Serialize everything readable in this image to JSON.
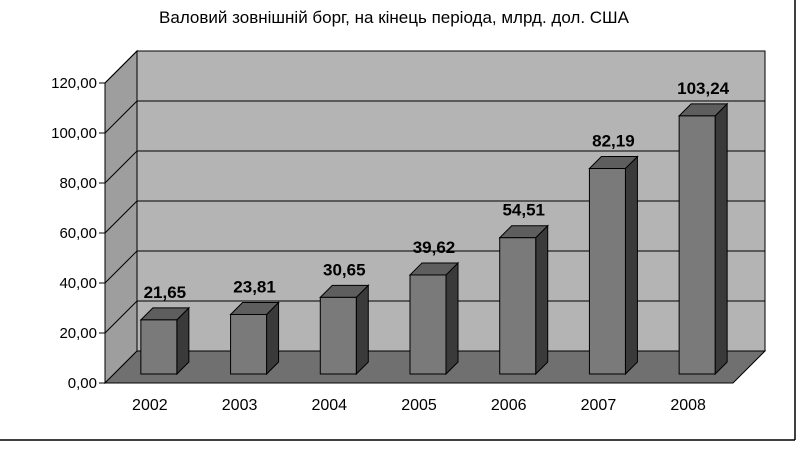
{
  "chart_data": {
    "type": "bar",
    "title": "Валовий зовнішній борг, на кінець періода, млрд. дол. США",
    "categories": [
      "2002",
      "2003",
      "2004",
      "2005",
      "2006",
      "2007",
      "2008"
    ],
    "values": [
      21.65,
      23.81,
      30.65,
      39.62,
      54.51,
      82.19,
      103.24
    ],
    "data_labels": [
      "21,65",
      "23,81",
      "30,65",
      "39,62",
      "54,51",
      "82,19",
      "103,24"
    ],
    "y_ticks": [
      "0,00",
      "20,00",
      "40,00",
      "60,00",
      "80,00",
      "100,00",
      "120,00"
    ],
    "ylim": [
      0,
      120
    ],
    "grid": true,
    "legend": "none",
    "style": "3d-column",
    "colors": {
      "bar_front": "#7a7a7a",
      "bar_side": "#3a3a3a",
      "bar_top": "#5e5e5e",
      "wall_back": "#b4b4b4",
      "wall_side": "#9e9e9e",
      "floor": "#707070",
      "gridline": "#000000"
    }
  }
}
